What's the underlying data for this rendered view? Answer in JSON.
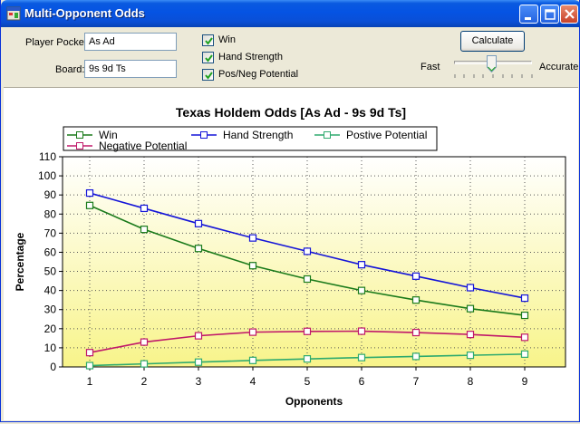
{
  "window": {
    "title": "Multi-Opponent Odds"
  },
  "form": {
    "player_pocket_label": "Player Pocket:",
    "player_pocket_value": "As Ad",
    "board_label": "Board:",
    "board_value": "9s 9d Ts",
    "checkboxes": [
      {
        "label": "Win",
        "checked": true
      },
      {
        "label": "Hand Strength",
        "checked": true
      },
      {
        "label": "Pos/Neg Potential",
        "checked": true
      }
    ],
    "calculate_label": "Calculate",
    "slider": {
      "min_label": "Fast",
      "max_label": "Accurate",
      "level": 0.45
    }
  },
  "colors": {
    "win": "#1a7a1a",
    "hand_strength": "#1414d8",
    "positive": "#2eaa6e",
    "negative": "#c0186a"
  },
  "chart_data": {
    "type": "line",
    "title": "Texas Holdem Odds [As Ad - 9s 9d Ts]",
    "xlabel": "Opponents",
    "ylabel": "Percentage",
    "x": [
      1,
      2,
      3,
      4,
      5,
      6,
      7,
      8,
      9
    ],
    "xlim": [
      0.5,
      9.75
    ],
    "ylim": [
      0,
      110
    ],
    "yticks": [
      0,
      10,
      20,
      30,
      40,
      50,
      60,
      70,
      80,
      90,
      100,
      110
    ],
    "grid": true,
    "legend": "top",
    "series": [
      {
        "name": "Win",
        "color": "#1a7a1a",
        "values": [
          84.5,
          72,
          62,
          53,
          46,
          40,
          35,
          30.5,
          27
        ]
      },
      {
        "name": "Hand Strength",
        "color": "#1414d8",
        "values": [
          91,
          83,
          75,
          67.5,
          60.5,
          53.5,
          47.5,
          41.5,
          36
        ]
      },
      {
        "name": "Postive Potential",
        "color": "#2eaa6e",
        "values": [
          0.7,
          1.6,
          2.5,
          3.4,
          4.2,
          4.9,
          5.5,
          6.1,
          6.7
        ]
      },
      {
        "name": "Negative Potential",
        "color": "#c0186a",
        "values": [
          7.5,
          13,
          16.3,
          18.2,
          18.6,
          18.7,
          18,
          17,
          15.5
        ]
      }
    ]
  }
}
